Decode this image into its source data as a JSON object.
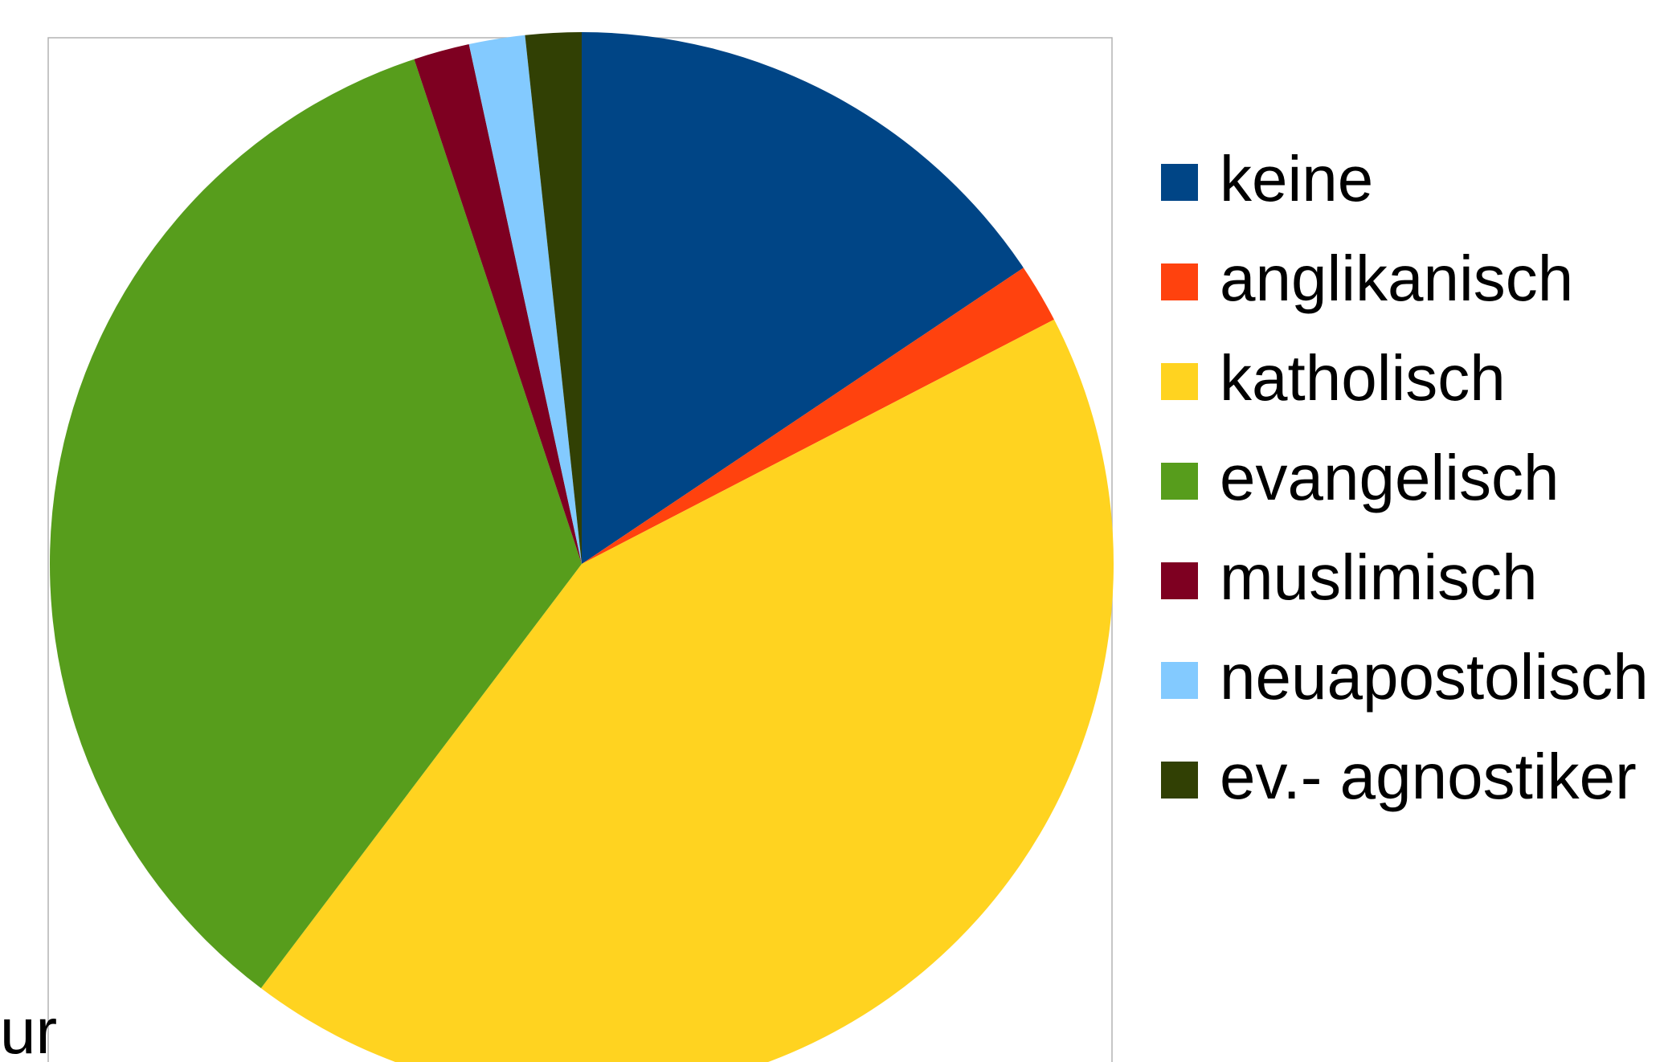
{
  "chart_data": {
    "type": "pie",
    "categories": [
      "keine",
      "anglikanisch",
      "katholisch",
      "evangelisch",
      "muslimisch",
      "neuapostolisch",
      "ev.- agnostiker"
    ],
    "values": [
      15.6,
      1.8,
      42.9,
      34.6,
      1.7,
      1.7,
      1.7
    ],
    "colors": [
      "#004586",
      "#ff420e",
      "#ffd320",
      "#579d1c",
      "#7e0021",
      "#83caff",
      "#314004"
    ],
    "legend": "right",
    "annotation": "ur"
  }
}
